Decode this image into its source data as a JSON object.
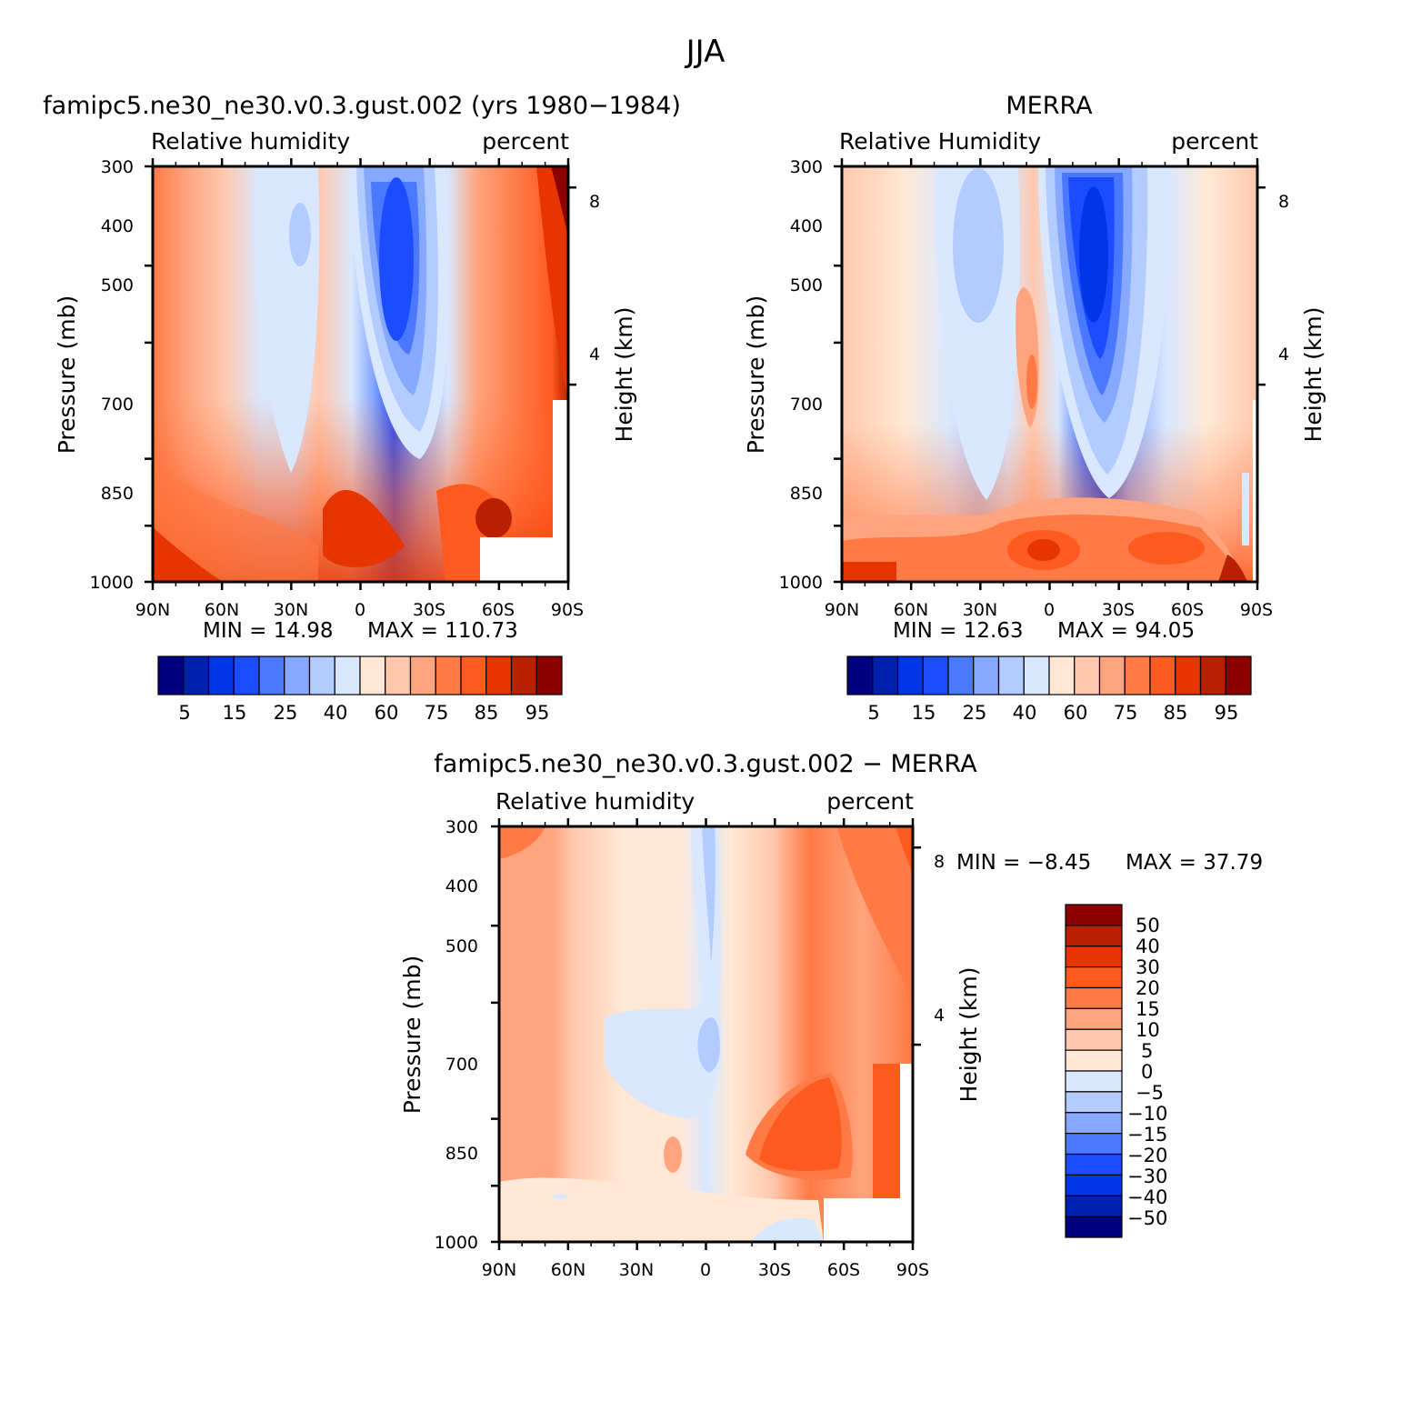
{
  "figure_title": "JJA",
  "colors": {
    "abs_scale": [
      "#000080",
      "#0020b0",
      "#0036e6",
      "#1b4dff",
      "#4a78ff",
      "#86a8ff",
      "#b3ccff",
      "#d9e8ff",
      "#ffe9d6",
      "#ffc8ad",
      "#ffa47e",
      "#ff7a45",
      "#ff5a20",
      "#e63500",
      "#b82000",
      "#8c0000"
    ],
    "diff_scale": [
      "#000080",
      "#0020b0",
      "#0036e6",
      "#1b4dff",
      "#4a78ff",
      "#86a8ff",
      "#b3ccff",
      "#d9e8ff",
      "#ffe9d6",
      "#ffc8ad",
      "#ffa47e",
      "#ff7a45",
      "#ff5a20",
      "#e63500",
      "#b82000",
      "#8c0000"
    ]
  },
  "chart_data": [
    {
      "id": "model",
      "type": "contour",
      "title": "famipc5.ne30_ne30.v0.3.gust.002 (yrs 1980-1984)",
      "left_label": "Relative humidity",
      "right_label": "percent",
      "xlabel": "",
      "ylabel": "Pressure (mb)",
      "y2label": "Height (km)",
      "x_ticks": [
        "90N",
        "60N",
        "30N",
        "0",
        "30S",
        "60S",
        "90S"
      ],
      "y_ticks": [
        "300",
        "400",
        "500",
        "700",
        "850",
        "1000"
      ],
      "y2_ticks": [
        "8",
        "4"
      ],
      "xlim": [
        90,
        -90
      ],
      "ylim": [
        1000,
        300
      ],
      "min_text": "MIN =   14.98",
      "max_text": "MAX =  110.73",
      "min": 14.98,
      "max": 110.73,
      "colorbar_labels": [
        "5",
        "15",
        "25",
        "40",
        "60",
        "75",
        "85",
        "95"
      ],
      "colorbar_levels": [
        5,
        10,
        15,
        20,
        25,
        30,
        40,
        50,
        60,
        70,
        75,
        80,
        85,
        90,
        95
      ]
    },
    {
      "id": "obs",
      "type": "contour",
      "title": "MERRA",
      "left_label": "Relative Humidity",
      "right_label": "percent",
      "xlabel": "",
      "ylabel": "Pressure (mb)",
      "y2label": "Height (km)",
      "x_ticks": [
        "90N",
        "60N",
        "30N",
        "0",
        "30S",
        "60S",
        "90S"
      ],
      "y_ticks": [
        "300",
        "400",
        "500",
        "700",
        "850",
        "1000"
      ],
      "y2_ticks": [
        "8",
        "4"
      ],
      "xlim": [
        90,
        -90
      ],
      "ylim": [
        1000,
        300
      ],
      "min_text": "MIN =   12.63",
      "max_text": "MAX =   94.05",
      "min": 12.63,
      "max": 94.05,
      "colorbar_labels": [
        "5",
        "15",
        "25",
        "40",
        "60",
        "75",
        "85",
        "95"
      ],
      "colorbar_levels": [
        5,
        10,
        15,
        20,
        25,
        30,
        40,
        50,
        60,
        70,
        75,
        80,
        85,
        90,
        95
      ]
    },
    {
      "id": "diff",
      "type": "contour",
      "title": "famipc5.ne30_ne30.v0.3.gust.002 - MERRA",
      "left_label": "Relative humidity",
      "right_label": "percent",
      "xlabel": "",
      "ylabel": "Pressure (mb)",
      "y2label": "Height (km)",
      "x_ticks": [
        "90N",
        "60N",
        "30N",
        "0",
        "30S",
        "60S",
        "90S"
      ],
      "y_ticks": [
        "300",
        "400",
        "500",
        "700",
        "850",
        "1000"
      ],
      "y2_ticks": [
        "8",
        "4"
      ],
      "xlim": [
        90,
        -90
      ],
      "ylim": [
        1000,
        300
      ],
      "min_text": "MIN =   -8.45",
      "max_text": "MAX =   37.79",
      "min": -8.45,
      "max": 37.79,
      "colorbar_labels": [
        "50",
        "40",
        "30",
        "20",
        "15",
        "10",
        "5",
        "0",
        "-5",
        "-10",
        "-15",
        "-20",
        "-30",
        "-40",
        "-50"
      ],
      "colorbar_levels": [
        50,
        40,
        30,
        20,
        15,
        10,
        5,
        0,
        -5,
        -10,
        -15,
        -20,
        -30,
        -40,
        -50
      ]
    }
  ]
}
